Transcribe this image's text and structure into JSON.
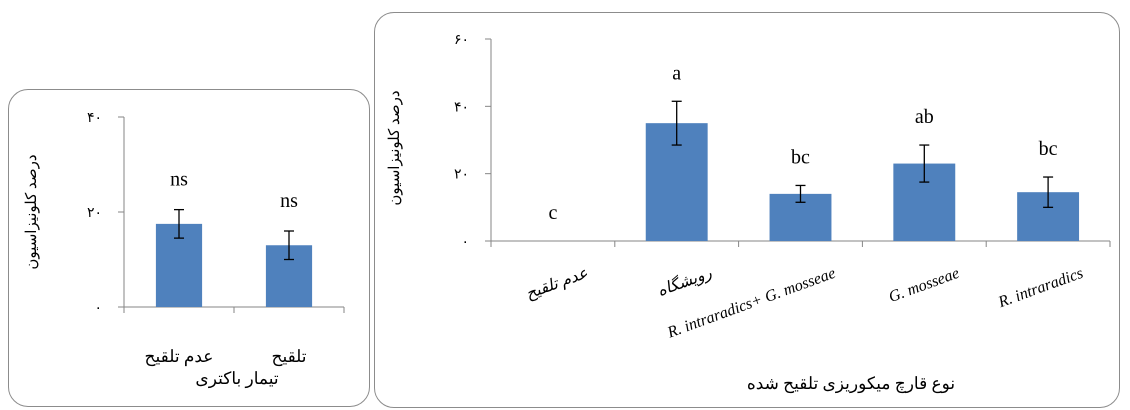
{
  "chart_data": [
    {
      "type": "bar",
      "ylabel": "درصد کلونیزاسیون",
      "xlabel": "تیمار باکتری",
      "ylim": [
        0,
        40
      ],
      "yticks": [
        0,
        20,
        40
      ],
      "ytick_labels": [
        "۰",
        "۲۰",
        "۴۰"
      ],
      "categories": [
        "عدم تلقیح",
        "تلقیح"
      ],
      "values": [
        17.5,
        13.0
      ],
      "errors": [
        3.0,
        3.0
      ],
      "data_labels": [
        "ns",
        "ns"
      ],
      "bar_color": "#4f81bd",
      "grid": false
    },
    {
      "type": "bar",
      "ylabel": "درصد کلونیزاسیون",
      "xlabel": "نوع قارچ میکوریزی تلقیح شده",
      "ylim": [
        0,
        60
      ],
      "yticks": [
        0,
        20,
        40,
        60
      ],
      "ytick_labels": [
        "۰",
        "۲۰",
        "۴۰",
        "۶۰"
      ],
      "categories": [
        "عدم تلقیح",
        "رویشگاه",
        "R. intraradics+ G. mosseae",
        "G. mosseae",
        "R. intraradics"
      ],
      "values": [
        0,
        35,
        14,
        23,
        14.5
      ],
      "errors": [
        0,
        6.5,
        2.5,
        5.5,
        4.5
      ],
      "data_labels": [
        "c",
        "a",
        "bc",
        "ab",
        "bc"
      ],
      "bar_color": "#4f81bd",
      "grid": false
    }
  ]
}
